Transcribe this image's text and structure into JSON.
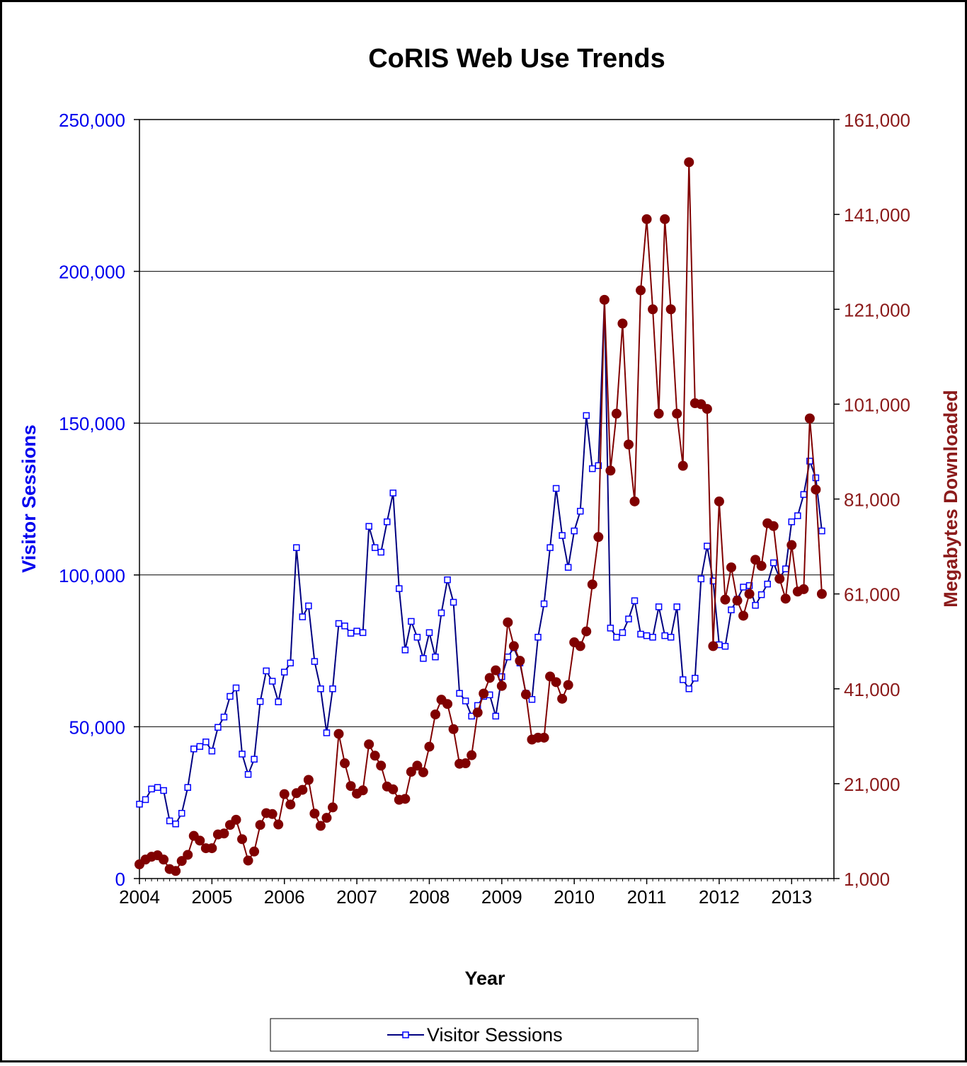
{
  "chart_data": {
    "type": "line",
    "title": "CoRIS Web Use Trends",
    "xlabel": "Year",
    "ylabel": "Visitor Sessions",
    "y2label": "Megabytes Downloaded",
    "xlim": [
      2004.0,
      2013.5833
    ],
    "ylim": [
      0,
      250000
    ],
    "y2lim": [
      1000,
      161000
    ],
    "x_ticks": [
      "2004",
      "2005",
      "2006",
      "2007",
      "2008",
      "2009",
      "2010",
      "2011",
      "2012",
      "2013"
    ],
    "y_ticks": [
      "0",
      "50,000",
      "100,000",
      "150,000",
      "200,000",
      "250,000"
    ],
    "y2_ticks": [
      "1,000",
      "21,000",
      "41,000",
      "61,000",
      "81,000",
      "101,000",
      "121,000",
      "141,000",
      "161,000"
    ],
    "grid": "horizontal",
    "legend_position": "bottom",
    "series": [
      {
        "name": "Visitor Sessions",
        "axis": "left",
        "color": "#000080",
        "marker": "square",
        "values": [
          24500,
          26000,
          29500,
          30000,
          29000,
          19000,
          18000,
          21500,
          30000,
          42700,
          43500,
          45000,
          42000,
          49800,
          53200,
          60000,
          62800,
          41000,
          34300,
          39300,
          58300,
          68400,
          65000,
          58200,
          68000,
          71000,
          109000,
          86200,
          89800,
          71500,
          62500,
          48000,
          62500,
          84000,
          83200,
          80800,
          81500,
          81000,
          116000,
          109000,
          107500,
          117500,
          127000,
          95500,
          75300,
          84700,
          79500,
          72500,
          81000,
          73000,
          87500,
          98400,
          91000,
          61000,
          58500,
          53500,
          57000,
          60000,
          60500,
          53500,
          66500,
          73000,
          76000,
          71000,
          61000,
          59000,
          79500,
          90500,
          109000,
          128500,
          113000,
          102500,
          114500,
          121000,
          152500,
          135000,
          136000,
          190500,
          82500,
          79500,
          81000,
          85500,
          91500,
          80500,
          80000,
          79500,
          89500,
          80000,
          79500,
          89500,
          65500,
          62500,
          66000,
          98700,
          109500,
          98000,
          77000,
          76500,
          88500,
          92000,
          96000,
          96500,
          90000,
          93500,
          97000,
          104000,
          99000,
          102000,
          117500,
          119500,
          126500,
          137500,
          132000,
          114500
        ]
      },
      {
        "name": "",
        "axis": "right",
        "color": "#800000",
        "marker": "circle",
        "values": [
          4000,
          5000,
          5600,
          5900,
          5000,
          3000,
          2600,
          4700,
          6000,
          10000,
          9000,
          7400,
          7400,
          10300,
          10500,
          12300,
          13400,
          9300,
          4800,
          6700,
          12300,
          14800,
          14600,
          12400,
          18800,
          16600,
          19000,
          19700,
          21800,
          14700,
          12100,
          13800,
          16000,
          31500,
          25300,
          20500,
          18900,
          19600,
          29300,
          26900,
          24800,
          20400,
          19800,
          17600,
          17800,
          23500,
          24800,
          23400,
          28800,
          35600,
          38700,
          37800,
          32500,
          25200,
          25300,
          27000,
          36000,
          40000,
          43300,
          44900,
          41600,
          55000,
          50000,
          46900,
          39800,
          30300,
          30700,
          30700,
          43600,
          42400,
          38900,
          41800,
          50800,
          50000,
          53100,
          63000,
          73000,
          123000,
          87000,
          99000,
          118000,
          92500,
          80500,
          125000,
          140000,
          121000,
          99000,
          140000,
          121000,
          99000,
          88000,
          152000,
          101200,
          101000,
          100000,
          50000,
          80500,
          59800,
          66600,
          59600,
          56400,
          61000,
          68200,
          66900,
          75900,
          75300,
          64200,
          60000,
          71300,
          61500,
          62000,
          98000,
          83000,
          61000
        ]
      }
    ]
  }
}
